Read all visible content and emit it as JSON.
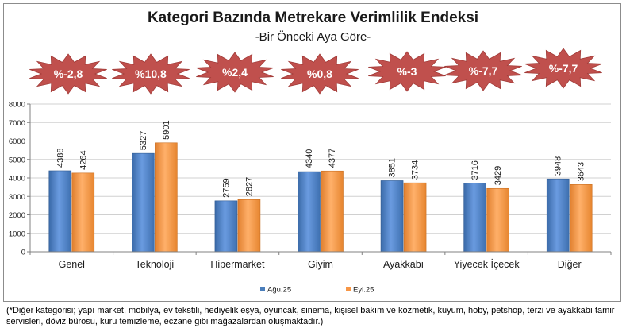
{
  "chart_data": {
    "type": "bar",
    "title": "Kategori Bazında Metrekare Verimlilik Endeksi",
    "subtitle": "-Bir Önceki Aya Göre-",
    "categories": [
      "Genel",
      "Teknoloji",
      "Hipermarket",
      "Giyim",
      "Ayakkabı",
      "Yiyecek İçecek",
      "Diğer"
    ],
    "series": [
      {
        "name": "Ağu.25",
        "values": [
          4388,
          5327,
          2759,
          4340,
          3851,
          3716,
          3948
        ],
        "color": "#4a7ebb"
      },
      {
        "name": "Eyl.25",
        "values": [
          4264,
          5901,
          2827,
          4377,
          3734,
          3429,
          3643
        ],
        "color": "#f79646"
      }
    ],
    "changes": [
      "%-2,8",
      "%10,8",
      "%2,4",
      "%0,8",
      "%-3",
      "%-7,7",
      "%-7,7"
    ],
    "badge_color": "#c0504d",
    "ylim": [
      0,
      8000
    ],
    "yticks": [
      "0",
      "1000",
      "2000",
      "3000",
      "4000",
      "5000",
      "6000",
      "7000",
      "8000"
    ],
    "grid": true,
    "legend": "bottom"
  },
  "footnote": "(*Diğer kategorisi; yapı market, mobilya, ev tekstili, hediyelik eşya, oyuncak, sinema, kişisel bakım ve kozmetik, kuyum, hoby, petshop, terzi ve ayakkabı tamir servisleri, döviz bürosu, kuru temizleme, eczane gibi mağazalardan oluşmaktadır.)"
}
